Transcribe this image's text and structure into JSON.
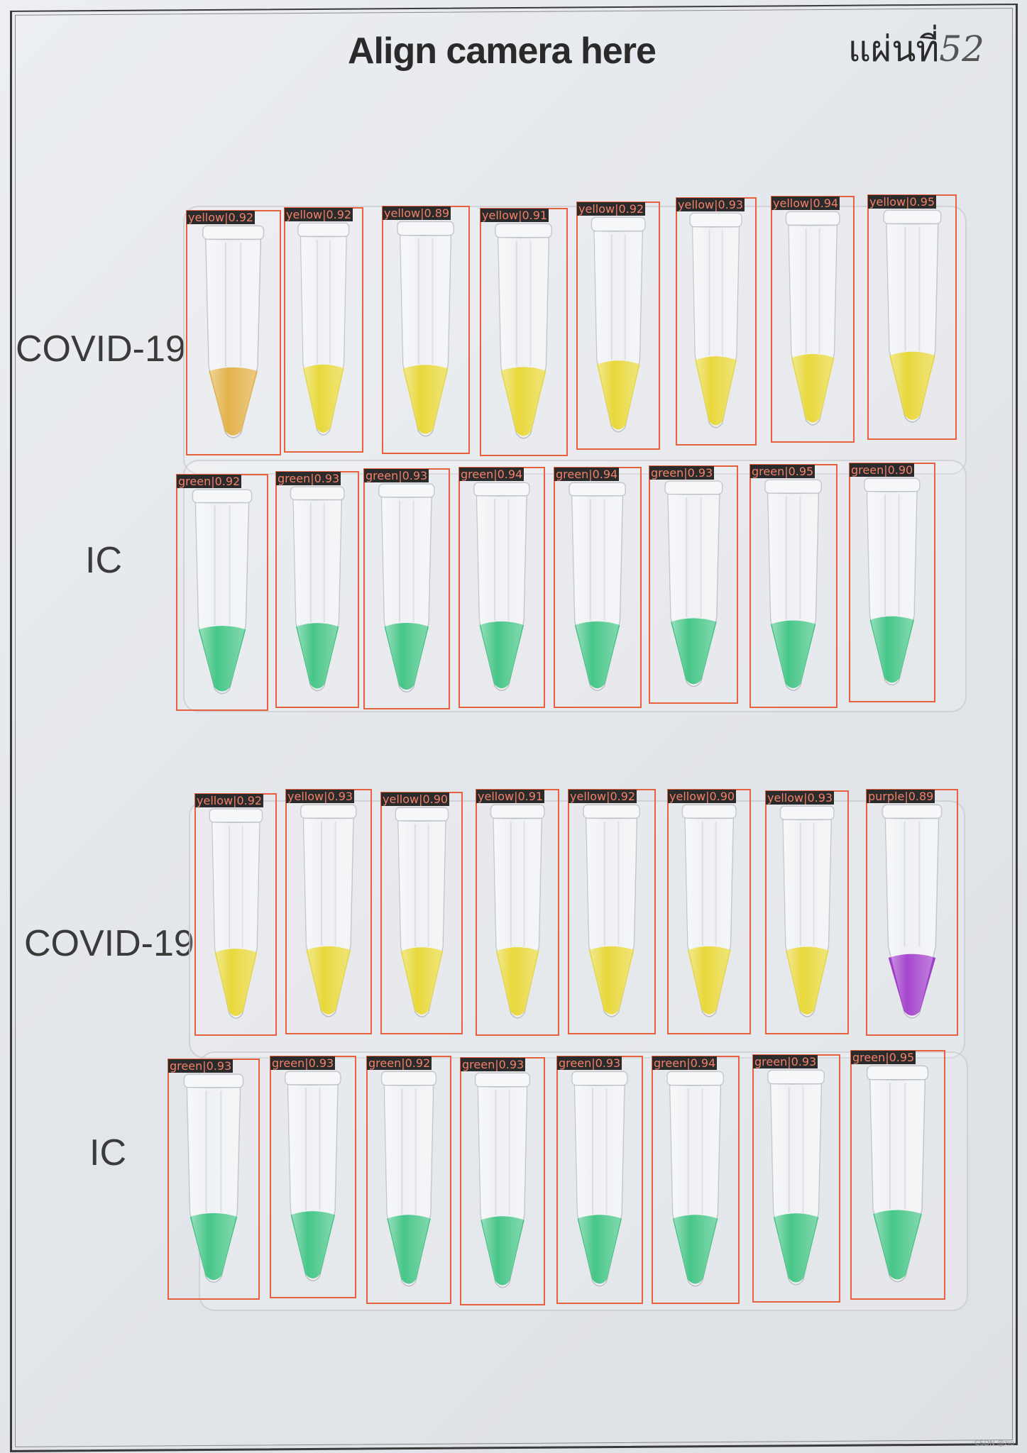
{
  "title": "Align camera here",
  "plate_label": "แผ่นที่",
  "plate_number": "52",
  "watermark": "CSDN @zio",
  "colors": {
    "yellow": "#e6d421",
    "orange": "#dfa832",
    "green": "#2fbf78",
    "purple": "#9a2fc8",
    "box": "#e8613f"
  },
  "rows": [
    {
      "label": "COVID-19",
      "detections": [
        {
          "cls": "yellow",
          "score": "0.92",
          "fill": "orange"
        },
        {
          "cls": "yellow",
          "score": "0.92",
          "fill": "yellow"
        },
        {
          "cls": "yellow",
          "score": "0.89",
          "fill": "yellow"
        },
        {
          "cls": "yellow",
          "score": "0.91",
          "fill": "yellow"
        },
        {
          "cls": "yellow",
          "score": "0.92",
          "fill": "yellow"
        },
        {
          "cls": "yellow",
          "score": "0.93",
          "fill": "yellow"
        },
        {
          "cls": "yellow",
          "score": "0.94",
          "fill": "yellow"
        },
        {
          "cls": "yellow",
          "score": "0.95",
          "fill": "yellow"
        }
      ]
    },
    {
      "label": "IC",
      "detections": [
        {
          "cls": "green",
          "score": "0.92",
          "fill": "green"
        },
        {
          "cls": "green",
          "score": "0.93",
          "fill": "green"
        },
        {
          "cls": "green",
          "score": "0.93",
          "fill": "green"
        },
        {
          "cls": "green",
          "score": "0.94",
          "fill": "green"
        },
        {
          "cls": "green",
          "score": "0.94",
          "fill": "green"
        },
        {
          "cls": "green",
          "score": "0.93",
          "fill": "green"
        },
        {
          "cls": "green",
          "score": "0.95",
          "fill": "green"
        },
        {
          "cls": "green",
          "score": "0.90",
          "fill": "green"
        }
      ]
    },
    {
      "label": "COVID-19",
      "detections": [
        {
          "cls": "yellow",
          "score": "0.92",
          "fill": "yellow"
        },
        {
          "cls": "yellow",
          "score": "0.93",
          "fill": "yellow"
        },
        {
          "cls": "yellow",
          "score": "0.90",
          "fill": "yellow"
        },
        {
          "cls": "yellow",
          "score": "0.91",
          "fill": "yellow"
        },
        {
          "cls": "yellow",
          "score": "0.92",
          "fill": "yellow"
        },
        {
          "cls": "yellow",
          "score": "0.90",
          "fill": "yellow"
        },
        {
          "cls": "yellow",
          "score": "0.93",
          "fill": "yellow"
        },
        {
          "cls": "purple",
          "score": "0.89",
          "fill": "purple"
        }
      ]
    },
    {
      "label": "IC",
      "detections": [
        {
          "cls": "green",
          "score": "0.93",
          "fill": "green"
        },
        {
          "cls": "green",
          "score": "0.93",
          "fill": "green"
        },
        {
          "cls": "green",
          "score": "0.92",
          "fill": "green"
        },
        {
          "cls": "green",
          "score": "0.93",
          "fill": "green"
        },
        {
          "cls": "green",
          "score": "0.93",
          "fill": "green"
        },
        {
          "cls": "green",
          "score": "0.94",
          "fill": "green"
        },
        {
          "cls": "green",
          "score": "0.93",
          "fill": "green"
        },
        {
          "cls": "green",
          "score": "0.95",
          "fill": "green"
        }
      ]
    }
  ]
}
